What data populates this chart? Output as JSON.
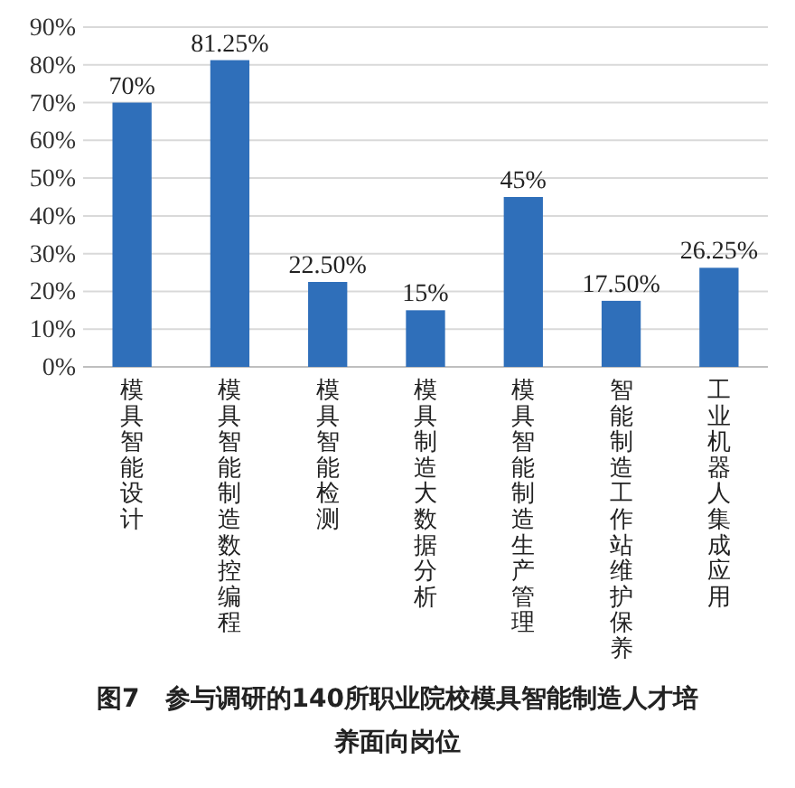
{
  "chart_data": {
    "type": "bar",
    "title": "图7　参与调研的140所职业院校模具智能制造人才培养面向岗位",
    "categories": [
      "模具智能设计",
      "模具智能制造数控编程",
      "模具智能检测",
      "模具制造大数据分析",
      "模具智能制造生产管理",
      "智能制造工作站维护保养",
      "工业机器人集成应用"
    ],
    "values": [
      70,
      81.25,
      22.5,
      15,
      45,
      17.5,
      26.25
    ],
    "value_labels": [
      "70%",
      "81.25%",
      "22.50%",
      "15%",
      "45%",
      "17.50%",
      "26.25%"
    ],
    "color": "#2f6fba",
    "ylim": [
      0,
      90
    ],
    "yticks": [
      {
        "value": 0,
        "label": "0%"
      },
      {
        "value": 10,
        "label": "10%"
      },
      {
        "value": 20,
        "label": "20%"
      },
      {
        "value": 30,
        "label": "30%"
      },
      {
        "value": 40,
        "label": "40%"
      },
      {
        "value": 50,
        "label": "50%"
      },
      {
        "value": 60,
        "label": "60%"
      },
      {
        "value": 70,
        "label": "70%"
      },
      {
        "value": 80,
        "label": "80%"
      },
      {
        "value": 90,
        "label": "90%"
      }
    ],
    "grid": "y"
  }
}
